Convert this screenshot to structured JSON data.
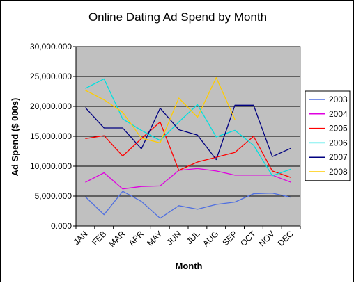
{
  "chart_data": {
    "type": "line",
    "title": "Online Dating Ad Spend by Month",
    "xlabel": "Month",
    "ylabel": "Ad Spend ($ 000s)",
    "categories": [
      "JAN",
      "FEB",
      "MAR",
      "APR",
      "MAY",
      "JUN",
      "JUL",
      "AUG",
      "SEP",
      "OCT",
      "NOV",
      "DEC"
    ],
    "ylim": [
      0,
      30000
    ],
    "yticks": [
      0,
      5000,
      10000,
      15000,
      20000,
      25000,
      30000
    ],
    "ytick_labels": [
      "0.000",
      "5,000.000",
      "10,000.000",
      "15,000.000",
      "20,000.000",
      "25,000.000",
      "30,000.000"
    ],
    "grid": true,
    "plot_background": "#c0c0c0",
    "legend_position": "right",
    "series": [
      {
        "name": "2003",
        "color": "#4f6fe0",
        "values": [
          4900,
          1900,
          5800,
          4100,
          1300,
          3400,
          2800,
          3600,
          4000,
          5400,
          5500,
          4800
        ]
      },
      {
        "name": "2004",
        "color": "#e000e0",
        "values": [
          7300,
          8900,
          6200,
          6600,
          6700,
          9300,
          9600,
          9200,
          8500,
          8500,
          8500,
          7300
        ]
      },
      {
        "name": "2005",
        "color": "#ff0000",
        "values": [
          14600,
          15100,
          11700,
          14600,
          17400,
          9300,
          10700,
          11500,
          12300,
          15000,
          9200,
          8100
        ]
      },
      {
        "name": "2006",
        "color": "#00e0e0",
        "values": [
          23000,
          24600,
          17900,
          16000,
          14300,
          17400,
          20300,
          14900,
          16000,
          13500,
          8400,
          9500
        ]
      },
      {
        "name": "2007",
        "color": "#000080",
        "values": [
          19800,
          16400,
          16400,
          12900,
          19700,
          16100,
          15200,
          11100,
          20200,
          20200,
          11600,
          13000
        ]
      },
      {
        "name": "2008",
        "color": "#ffcc00",
        "values": [
          22700,
          21100,
          19000,
          14700,
          13900,
          21400,
          18200,
          24800,
          17800,
          null,
          null,
          null
        ]
      }
    ]
  }
}
